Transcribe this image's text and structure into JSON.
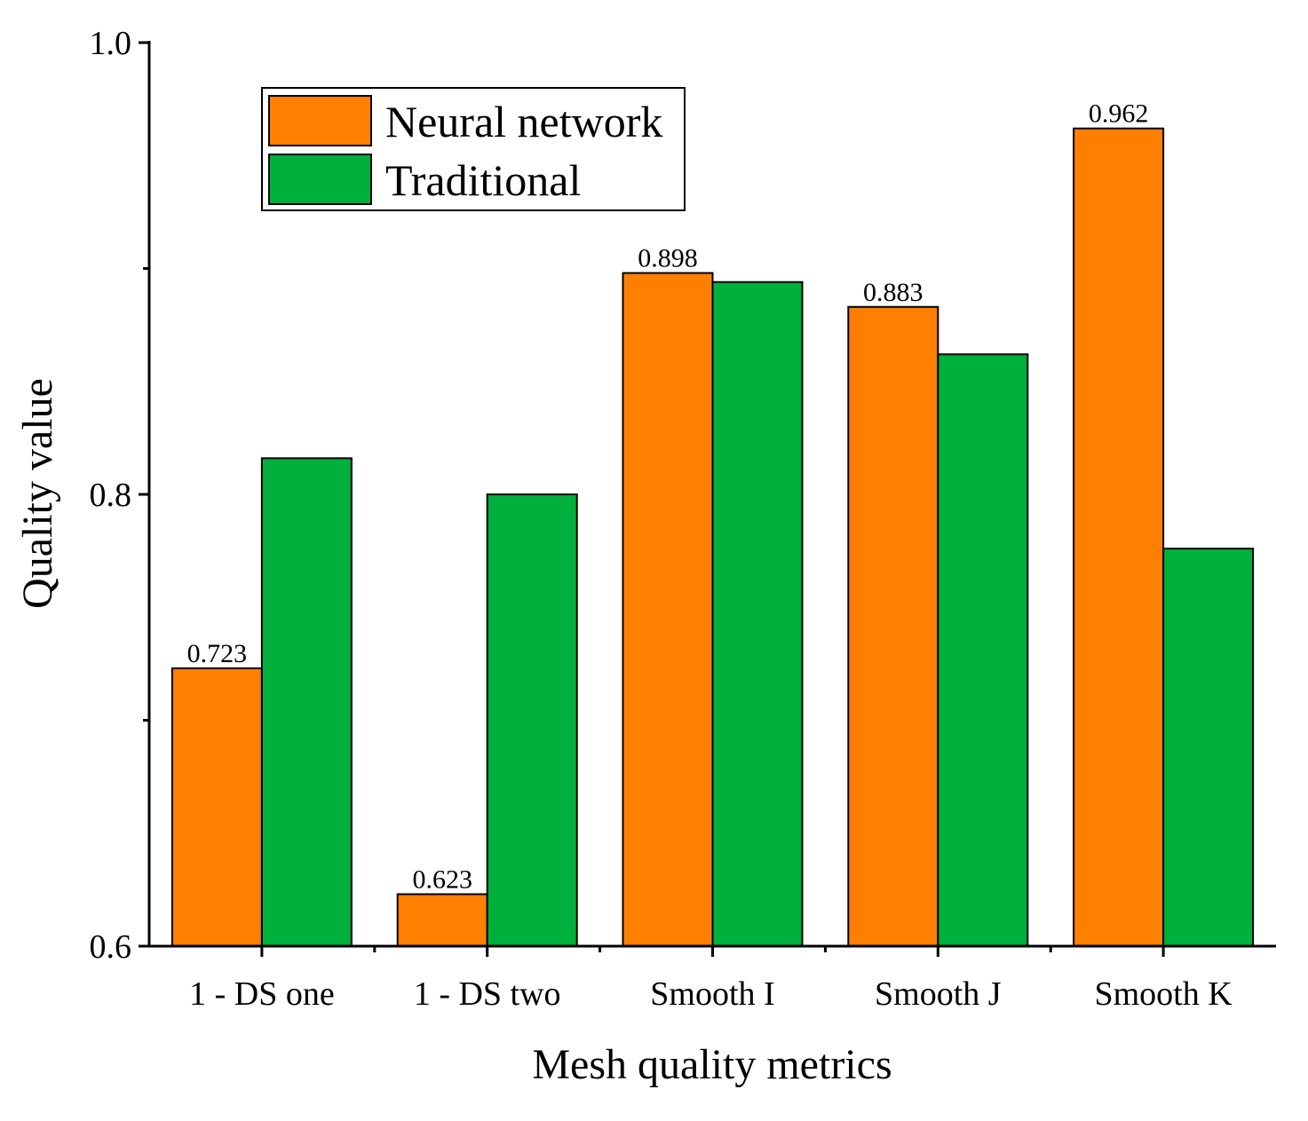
{
  "chart_data": {
    "type": "bar",
    "title": "",
    "xlabel": "Mesh quality metrics",
    "ylabel": "Quality value",
    "ylim": [
      0.6,
      1.0
    ],
    "yticks": [
      0.6,
      0.8,
      1.0
    ],
    "ytick_labels": [
      "0.6",
      "0.8",
      "1.0"
    ],
    "categories": [
      "1 - DS one",
      "1 - DS two",
      "Smooth I",
      "Smooth J",
      "Smooth K"
    ],
    "series": [
      {
        "name": "Neural network",
        "color": "#FF8000",
        "values": [
          0.723,
          0.623,
          0.898,
          0.883,
          0.962
        ],
        "labels": [
          "0.723",
          "0.623",
          "0.898",
          "0.883",
          "0.962"
        ]
      },
      {
        "name": "Traditional",
        "color": "#00B03C",
        "values": [
          0.816,
          0.8,
          0.894,
          0.862,
          0.776
        ],
        "labels": [
          "",
          "",
          "",
          "",
          ""
        ]
      }
    ],
    "legend": {
      "position": "top-left"
    },
    "grid": false
  }
}
